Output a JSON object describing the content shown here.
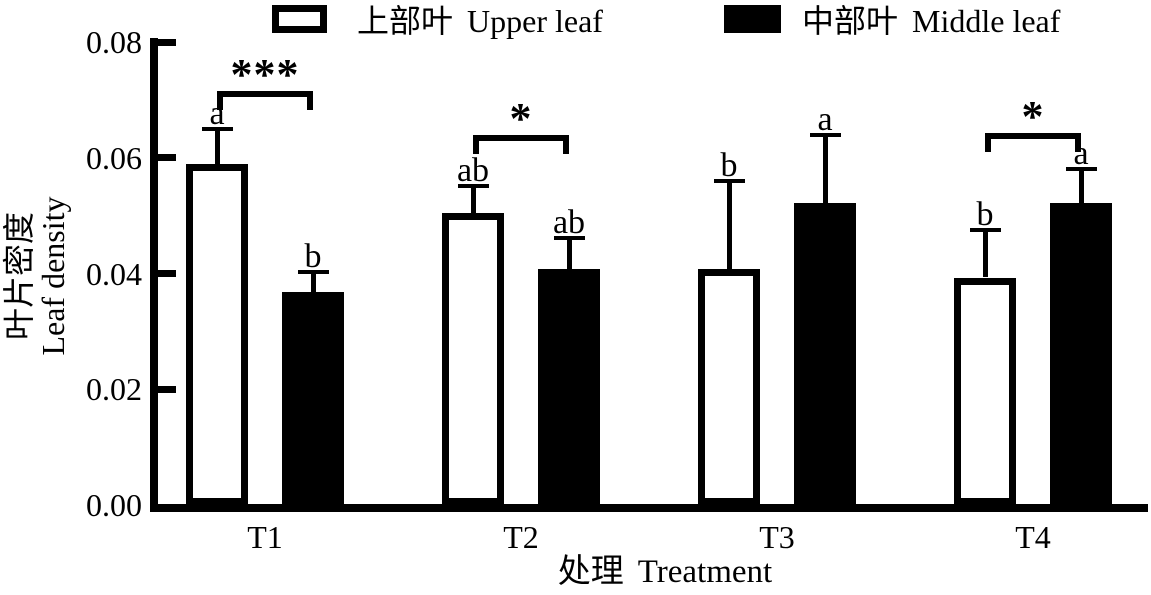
{
  "chart_data": {
    "type": "bar",
    "title": "",
    "categories": [
      "T1",
      "T2",
      "T3",
      "T4"
    ],
    "series": [
      {
        "name_zh": "上部叶",
        "name_en": "Upper leaf",
        "label": "上部叶  Upper leaf",
        "fill": "#ffffff",
        "values": [
          0.059,
          0.0505,
          0.0407,
          0.0393
        ],
        "errors_plus": [
          0.006,
          0.0047,
          0.0152,
          0.0082
        ],
        "letters": [
          "a",
          "ab",
          "b",
          "b"
        ]
      },
      {
        "name_zh": "中部叶",
        "name_en": "Middle leaf",
        "label": "中部叶  Middle leaf",
        "fill": "#000000",
        "values": [
          0.0368,
          0.0407,
          0.0522,
          0.0522
        ],
        "errors_plus": [
          0.0035,
          0.0055,
          0.0118,
          0.0058
        ],
        "letters": [
          "b",
          "ab",
          "a",
          "a"
        ]
      }
    ],
    "significance_brackets": [
      {
        "category": "T1",
        "label": "***",
        "height": 0.0715
      },
      {
        "category": "T2",
        "label": "*",
        "height": 0.064
      },
      {
        "category": "T4",
        "label": "*",
        "height": 0.0643
      }
    ],
    "xlabel_zh": "处理",
    "xlabel_en": "Treatment",
    "ylabel_zh": "叶片密度",
    "ylabel_en": "Leaf density",
    "ylim": [
      0,
      0.08
    ],
    "yticks": [
      {
        "value": 0.0,
        "label": "0.00"
      },
      {
        "value": 0.02,
        "label": "0.02"
      },
      {
        "value": 0.04,
        "label": "0.04"
      },
      {
        "value": 0.06,
        "label": "0.06"
      },
      {
        "value": 0.08,
        "label": "0.08"
      }
    ],
    "grid": false,
    "legend_position": "top",
    "axis_color": "#000000",
    "bar_colors": {
      "upper": "#ffffff",
      "middle": "#000000"
    }
  }
}
